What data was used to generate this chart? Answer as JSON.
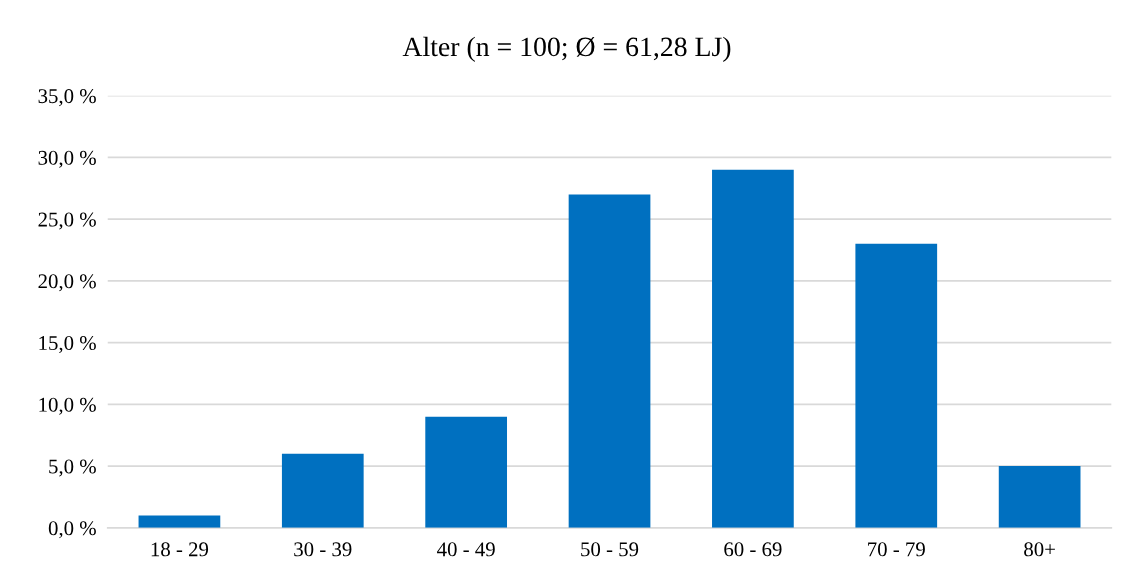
{
  "chart_data": {
    "type": "bar",
    "title": "Alter (n = 100; Ø = 61,28 LJ)",
    "categories": [
      "18 - 29",
      "30 - 39",
      "40 - 49",
      "50 - 59",
      "60 - 69",
      "70 - 79",
      "80+"
    ],
    "values": [
      1,
      6,
      9,
      27,
      29,
      23,
      5
    ],
    "color": "#0070c0",
    "ylim": [
      0,
      35
    ],
    "yticks": [
      {
        "value": 0,
        "label": "0,0 %"
      },
      {
        "value": 5,
        "label": "5,0 %"
      },
      {
        "value": 10,
        "label": "10,0 %"
      },
      {
        "value": 15,
        "label": "15,0 %"
      },
      {
        "value": 20,
        "label": "20,0 %"
      },
      {
        "value": 25,
        "label": "25,0 %"
      },
      {
        "value": 30,
        "label": "30,0 %"
      },
      {
        "value": 35,
        "label": "35,0 %"
      }
    ],
    "grid": "y",
    "legend": false
  }
}
